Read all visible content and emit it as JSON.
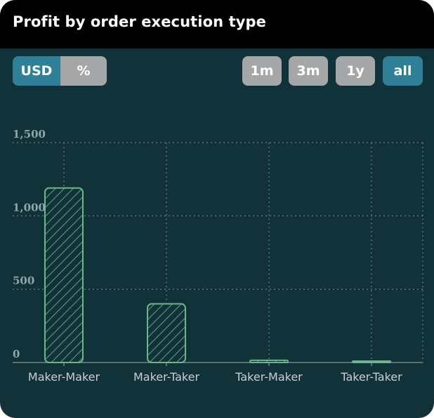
{
  "title": "Profit by order execution type",
  "unit_toggle": {
    "options": [
      "USD",
      "%"
    ],
    "selected": "USD"
  },
  "range_buttons": {
    "options": [
      "1m",
      "3m",
      "1y",
      "all"
    ],
    "selected": "all"
  },
  "colors": {
    "header_bg": "#000000",
    "panel_bg": "#12323a",
    "active_button": "#2f7f96",
    "inactive_button": "#a4a6a7",
    "bar_stroke": "#6fb38f",
    "bar_hatch": "#5c9a7b",
    "grid": "#5d7880"
  },
  "chart_data": {
    "type": "bar",
    "categories": [
      "Maker-Maker",
      "Maker-Taker",
      "Taker-Maker",
      "Taker-Taker"
    ],
    "values": [
      1190,
      400,
      15,
      5
    ],
    "ylim": [
      0,
      1500
    ],
    "yticks": [
      0,
      500,
      1000,
      1500
    ],
    "ytick_labels": [
      "0",
      "500",
      "1,000",
      "1,500"
    ],
    "grid": true,
    "bar_pattern": "diagonal-hatch"
  }
}
